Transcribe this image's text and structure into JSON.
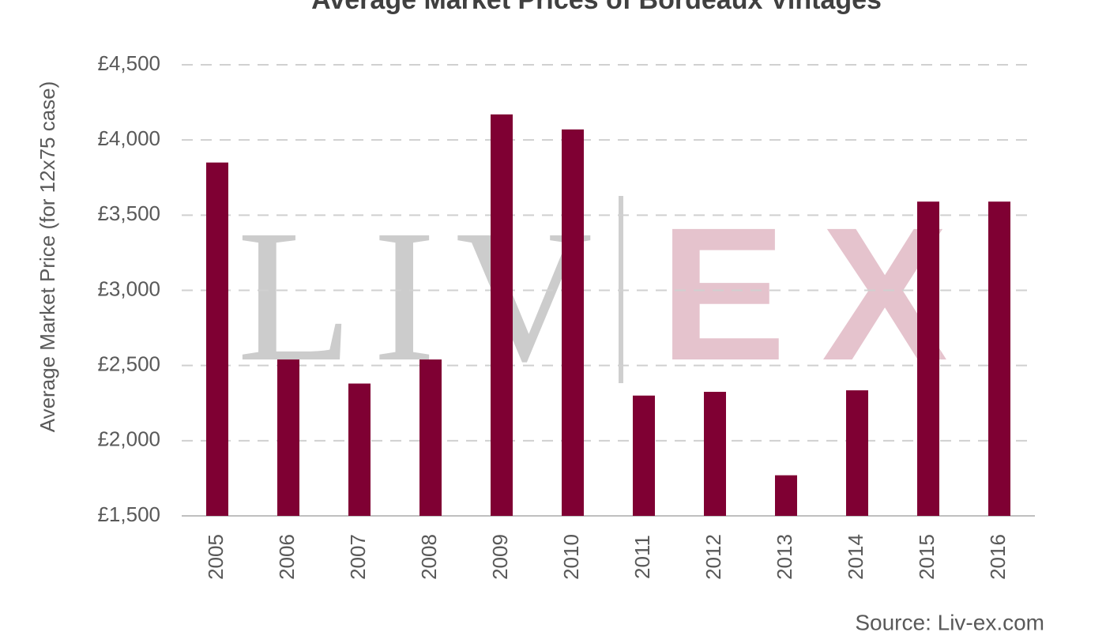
{
  "chart_data": {
    "type": "bar",
    "title": "Average Market Prices of Bordeaux Vintages",
    "y_label": "Average Market Price (for 12x75 case)",
    "source": "Source: Liv-ex.com",
    "watermark": {
      "left": "LIV",
      "right": "EX"
    },
    "categories": [
      "2005",
      "2006",
      "2007",
      "2008",
      "2009",
      "2010",
      "2011",
      "2012",
      "2013",
      "2014",
      "2015",
      "2016"
    ],
    "values": [
      3850,
      2540,
      2380,
      2540,
      4170,
      4070,
      2300,
      2325,
      1770,
      2335,
      3590,
      3590
    ],
    "color": "#7f0033",
    "ylim": [
      1500,
      4500
    ],
    "yticks": [
      {
        "value": 1500,
        "label": "£1,500"
      },
      {
        "value": 2000,
        "label": "£2,000"
      },
      {
        "value": 2500,
        "label": "£2,500"
      },
      {
        "value": 3000,
        "label": "£3,000"
      },
      {
        "value": 3500,
        "label": "£3,500"
      },
      {
        "value": 4000,
        "label": "£4,000"
      },
      {
        "value": 4500,
        "label": "£4,500"
      }
    ],
    "grid": true
  }
}
